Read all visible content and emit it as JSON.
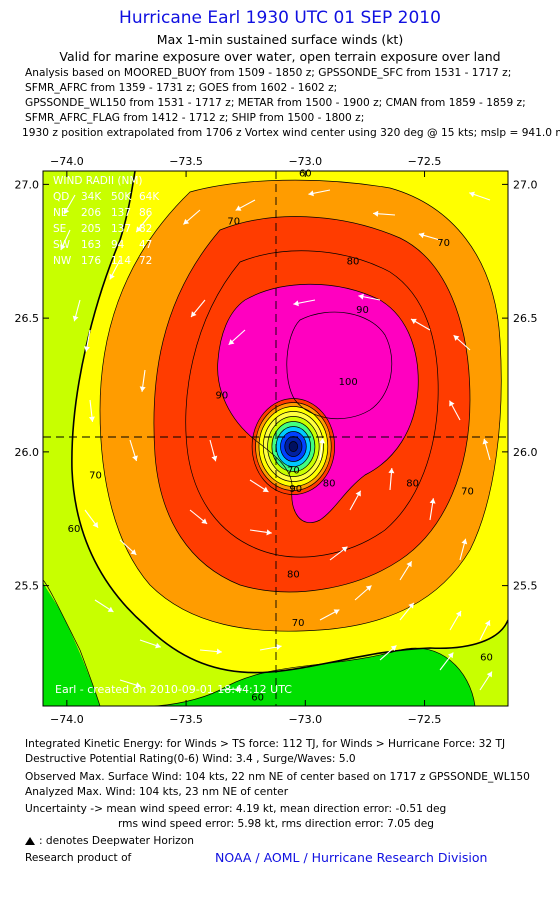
{
  "header": {
    "title": "Hurricane Earl 1930 UTC 01 SEP 2010",
    "subtitle": "Max 1-min sustained surface winds (kt)",
    "validity": "Valid for marine exposure over water, open terrain exposure over land",
    "analysis_lines": [
      "Analysis based on MOORED_BUOY from 1509 - 1850 z; GPSSONDE_SFC from 1531 - 1717 z;",
      "SFMR_AFRC from 1359 - 1731 z; GOES from 1602 - 1602 z;",
      "GPSSONDE_WL150 from 1531 - 1717 z; METAR from 1500 - 1900 z; CMAN from 1859 - 1859 z;",
      "SFMR_AFRC_FLAG from 1412 - 1712 z; SHIP from 1500 - 1800 z;",
      "1930 z position extrapolated from 1706 z Vortex wind center using 320 deg @ 15 kts; mslp = 941.0 mb"
    ]
  },
  "chart_data": {
    "type": "contour",
    "variable": "Max 1-min sustained surface winds (kt)",
    "xlim": [
      -74.1,
      -72.15
    ],
    "ylim": [
      25.05,
      27.05
    ],
    "x_ticks": [
      -74.0,
      -73.5,
      -73.0,
      -72.5
    ],
    "x_tick_labels": [
      "−74.0",
      "−73.5",
      "−73.0",
      "−72.5"
    ],
    "y_ticks": [
      25.5,
      26.0,
      26.5,
      27.0
    ],
    "y_tick_labels": [
      "25.5",
      "26.0",
      "26.5",
      "27.0"
    ],
    "storm_center": {
      "lon": -73.05,
      "lat": 26.02
    },
    "contour_levels_kt": [
      50,
      60,
      64,
      70,
      80,
      90,
      100
    ],
    "contour_labels": [
      {
        "text": "70",
        "lon": -73.88,
        "lat": 25.9
      },
      {
        "text": "60",
        "lon": -73.97,
        "lat": 25.7
      },
      {
        "text": "70",
        "lon": -73.3,
        "lat": 26.85
      },
      {
        "text": "60",
        "lon": -73.0,
        "lat": 27.03
      },
      {
        "text": "70",
        "lon": -72.42,
        "lat": 26.77
      },
      {
        "text": "80",
        "lon": -72.8,
        "lat": 26.7
      },
      {
        "text": "90",
        "lon": -72.76,
        "lat": 26.52
      },
      {
        "text": "100",
        "lon": -72.82,
        "lat": 26.25
      },
      {
        "text": "90",
        "lon": -73.35,
        "lat": 26.2
      },
      {
        "text": "80",
        "lon": -72.55,
        "lat": 25.87
      },
      {
        "text": "70",
        "lon": -72.32,
        "lat": 25.84
      },
      {
        "text": "90",
        "lon": -73.04,
        "lat": 25.85
      },
      {
        "text": "80",
        "lon": -72.9,
        "lat": 25.87
      },
      {
        "text": "70",
        "lon": -73.05,
        "lat": 25.92
      },
      {
        "text": "80",
        "lon": -73.05,
        "lat": 25.53
      },
      {
        "text": "70",
        "lon": -73.03,
        "lat": 25.35
      },
      {
        "text": "60",
        "lon": -73.2,
        "lat": 25.07
      },
      {
        "text": "60",
        "lon": -72.24,
        "lat": 25.22
      }
    ],
    "wind_radii": {
      "title": "WIND RADII (NM)",
      "columns": [
        "QD",
        "34K",
        "50K",
        "64K"
      ],
      "rows": [
        [
          "NE",
          "206",
          "137",
          "86"
        ],
        [
          "SE",
          "205",
          "137",
          "82"
        ],
        [
          "SW",
          "163",
          "94",
          "47"
        ],
        [
          "NW",
          "176",
          "114",
          "72"
        ]
      ]
    },
    "watermark": "Earl - created on 2010-09-01 18:44:12 UTC",
    "colors": {
      "c50": "#00e000",
      "c60": "#c8ff00",
      "c64": "#ffff00",
      "c70": "#ff9c00",
      "c80": "#ff3c00",
      "c90": "#ff00c0",
      "cEye1": "#ffff40",
      "cEye2": "#40ff80",
      "cEye3": "#00c8ff",
      "cEye4": "#0040ff"
    }
  },
  "footer": {
    "ike": "Integrated Kinetic Energy:  for Winds > TS force: 112 TJ,  for Winds > Hurricane Force: 32 TJ",
    "dpr": "Destructive Potential Rating(0-6)   Wind: 3.4 , Surge/Waves: 5.0",
    "observed": "Observed Max. Surface Wind: 104 kts, 22 nm NE of center based on 1717 z GPSSONDE_WL150",
    "analyzed": "Analyzed Max. Wind: 104 kts, 23 nm NE of center",
    "uncertainty1": "Uncertainty -> mean wind speed error: 4.19 kt,   mean direction error:  -0.51 deg",
    "uncertainty2": "rms wind speed error: 5.98 kt,   rms direction error: 7.05 deg",
    "dwh": ": denotes Deepwater Horizon",
    "research": "Research product of",
    "org": "NOAA / AOML / Hurricane Research Division"
  }
}
